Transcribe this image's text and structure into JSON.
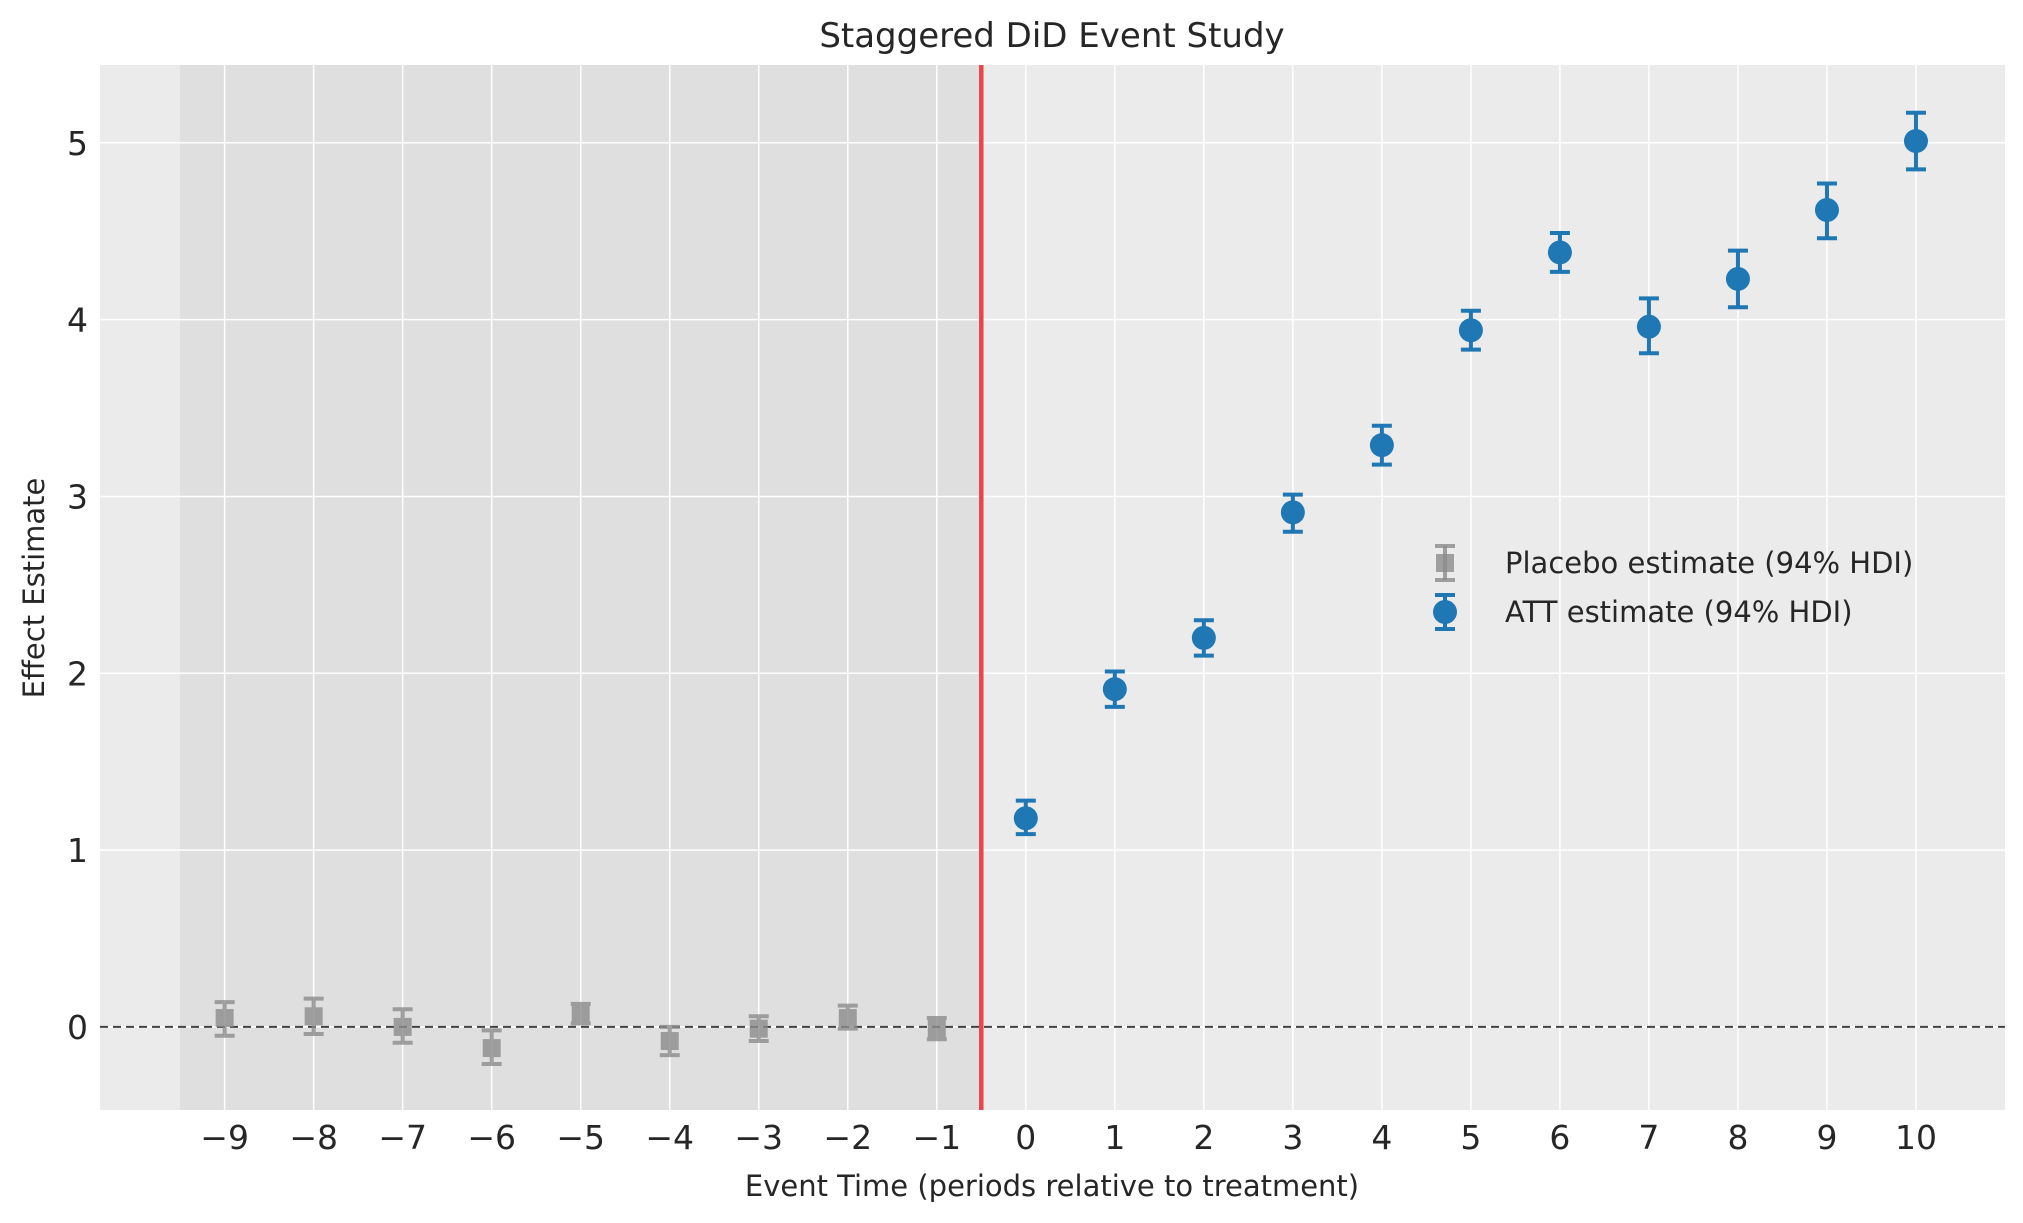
{
  "chart_data": {
    "type": "scatter",
    "title": "Staggered DiD Event Study",
    "xlabel": "Event Time (periods relative to treatment)",
    "ylabel": "Effect Estimate",
    "xlim": [
      -10.4,
      11.0
    ],
    "ylim": [
      -0.47,
      5.44
    ],
    "x_ticks": [
      -9,
      -8,
      -7,
      -6,
      -5,
      -4,
      -3,
      -2,
      -1,
      0,
      1,
      2,
      3,
      4,
      5,
      6,
      7,
      8,
      9,
      10
    ],
    "x_tick_labels": [
      "−9",
      "−8",
      "−7",
      "−6",
      "−5",
      "−4",
      "−3",
      "−2",
      "−1",
      "0",
      "1",
      "2",
      "3",
      "4",
      "5",
      "6",
      "7",
      "8",
      "9",
      "10"
    ],
    "y_ticks": [
      0,
      1,
      2,
      3,
      4,
      5
    ],
    "y_tick_labels": [
      "0",
      "1",
      "2",
      "3",
      "4",
      "5"
    ],
    "grid": true,
    "legend_position": "center-right",
    "pre_treatment_shade": [
      -9.5,
      -0.5
    ],
    "treatment_line_x": -0.5,
    "reference_line_y": 0,
    "colors": {
      "placebo": "#8c8c8c",
      "att": "#1f77b4",
      "treatment_line": "#e8464a",
      "reference_line": "#444444",
      "background": "#ebebeb",
      "shade": "#dddddd",
      "grid": "#ffffff"
    },
    "series": [
      {
        "name": "Placebo estimate (94% HDI)",
        "marker": "square",
        "x": [
          -9,
          -8,
          -7,
          -6,
          -5,
          -4,
          -3,
          -2,
          -1
        ],
        "y": [
          0.05,
          0.06,
          0.0,
          -0.12,
          0.08,
          -0.08,
          -0.01,
          0.05,
          -0.01
        ],
        "lower": [
          -0.05,
          -0.04,
          -0.09,
          -0.21,
          0.02,
          -0.16,
          -0.08,
          -0.01,
          -0.07
        ],
        "upper": [
          0.14,
          0.16,
          0.1,
          -0.02,
          0.13,
          0.0,
          0.06,
          0.12,
          0.05
        ]
      },
      {
        "name": "ATT estimate (94% HDI)",
        "marker": "circle",
        "x": [
          0,
          1,
          2,
          3,
          4,
          5,
          6,
          7,
          8,
          9,
          10
        ],
        "y": [
          1.18,
          1.91,
          2.2,
          2.91,
          3.29,
          3.94,
          4.38,
          3.96,
          4.23,
          4.62,
          5.01
        ],
        "lower": [
          1.09,
          1.81,
          2.1,
          2.8,
          3.18,
          3.83,
          4.27,
          3.81,
          4.07,
          4.46,
          4.85
        ],
        "upper": [
          1.28,
          2.01,
          2.3,
          3.01,
          3.4,
          4.05,
          4.49,
          4.12,
          4.39,
          4.77,
          5.17
        ]
      }
    ]
  }
}
